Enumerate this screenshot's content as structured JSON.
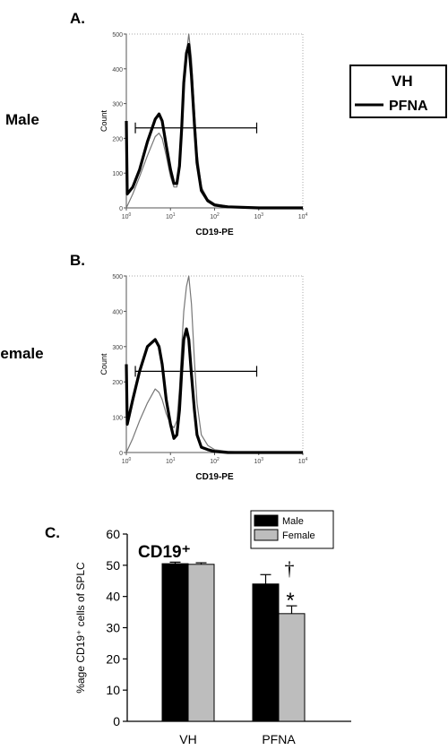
{
  "legend_top": {
    "entries": [
      "VH",
      "PFNA"
    ]
  },
  "panels": [
    {
      "letter": "A.",
      "row_label": "Male"
    },
    {
      "letter": "B.",
      "row_label": "Female"
    }
  ],
  "panel_c": {
    "letter": "C."
  },
  "chart_data": [
    {
      "type": "line",
      "title": "",
      "xlabel": "CD19-PE",
      "ylabel": "Count",
      "xscale": "log",
      "xlim": [
        1,
        10000
      ],
      "ylim": [
        0,
        500
      ],
      "x_ticks": [
        "10^0",
        "10^1",
        "10^2",
        "10^3",
        "10^4"
      ],
      "y_ticks": [
        "0",
        "100",
        "200",
        "300",
        "400",
        "500"
      ],
      "gate": {
        "x": [
          1.6,
          900
        ],
        "y": 230
      },
      "series": [
        {
          "name": "VH",
          "line": "thin",
          "x": [
            1.0,
            1.4,
            2.0,
            3.0,
            4.5,
            5.5,
            6.5,
            8.0,
            10.0,
            12.0,
            14.0,
            16.0,
            18.0,
            20.0,
            23.0,
            26.0,
            30.0,
            35.0,
            40.0,
            50.0,
            70.0,
            100.0,
            200.0,
            1000.0,
            10000.0
          ],
          "y": [
            0,
            40,
            90,
            150,
            205,
            215,
            200,
            150,
            90,
            60,
            60,
            110,
            210,
            350,
            445,
            500,
            430,
            280,
            160,
            60,
            25,
            12,
            5,
            0,
            0
          ]
        },
        {
          "name": "PFNA",
          "line": "thick",
          "x": [
            1.0,
            1.05,
            1.4,
            2.0,
            3.0,
            4.5,
            5.5,
            6.5,
            8.0,
            10.0,
            12.0,
            14.0,
            16.0,
            18.0,
            20.0,
            23.0,
            26.0,
            30.0,
            35.0,
            40.0,
            50.0,
            70.0,
            100.0,
            200.0,
            1000.0,
            10000.0
          ],
          "y": [
            250,
            40,
            60,
            110,
            190,
            255,
            270,
            250,
            180,
            110,
            70,
            70,
            120,
            230,
            360,
            445,
            470,
            380,
            240,
            130,
            50,
            20,
            8,
            3,
            0,
            0
          ]
        }
      ]
    },
    {
      "type": "line",
      "title": "",
      "xlabel": "CD19-PE",
      "ylabel": "Count",
      "xscale": "log",
      "xlim": [
        1,
        10000
      ],
      "ylim": [
        0,
        500
      ],
      "x_ticks": [
        "10^0",
        "10^1",
        "10^2",
        "10^3",
        "10^4"
      ],
      "y_ticks": [
        "0",
        "100",
        "200",
        "300",
        "400",
        "500"
      ],
      "gate": {
        "x": [
          1.6,
          900
        ],
        "y": 230
      },
      "series": [
        {
          "name": "VH",
          "line": "thin",
          "x": [
            1.0,
            1.4,
            2.0,
            3.0,
            4.5,
            5.5,
            6.5,
            8.0,
            10.0,
            12.0,
            14.0,
            16.0,
            18.0,
            20.0,
            23.0,
            26.0,
            30.0,
            35.0,
            40.0,
            50.0,
            70.0,
            100.0,
            200.0,
            1000.0,
            10000.0
          ],
          "y": [
            0,
            40,
            90,
            140,
            180,
            170,
            150,
            110,
            80,
            70,
            90,
            180,
            300,
            400,
            470,
            500,
            420,
            260,
            140,
            50,
            20,
            8,
            3,
            0,
            0
          ]
        },
        {
          "name": "PFNA",
          "line": "thick",
          "x": [
            1.0,
            1.05,
            1.4,
            2.0,
            3.0,
            4.5,
            5.5,
            6.5,
            8.0,
            10.0,
            12.0,
            14.0,
            16.0,
            18.0,
            20.0,
            23.0,
            26.0,
            30.0,
            35.0,
            40.0,
            50.0,
            70.0,
            100.0,
            200.0,
            1000.0,
            10000.0
          ],
          "y": [
            250,
            80,
            150,
            230,
            300,
            320,
            300,
            250,
            150,
            80,
            40,
            50,
            120,
            230,
            320,
            350,
            320,
            220,
            120,
            50,
            15,
            8,
            3,
            0,
            0,
            0
          ]
        }
      ]
    },
    {
      "type": "bar",
      "title": "CD19⁺",
      "ylabel": "%age CD19⁺ cells of SPLC",
      "categories": [
        "VH",
        "PFNA"
      ],
      "ylim": [
        0,
        60
      ],
      "y_ticks": [
        "0",
        "10",
        "20",
        "30",
        "40",
        "50",
        "60"
      ],
      "legend_placement": "top-right",
      "series": [
        {
          "name": "Male",
          "color": "#000000",
          "values": [
            50.5,
            44.0
          ],
          "errors": [
            0.5,
            3.0
          ]
        },
        {
          "name": "Female",
          "color": "#bdbdbd",
          "values": [
            50.3,
            34.5
          ],
          "errors": [
            0.5,
            2.5
          ]
        }
      ],
      "annotations": [
        {
          "text": "†",
          "category": "PFNA"
        },
        {
          "text": "*",
          "category": "PFNA"
        }
      ]
    }
  ]
}
